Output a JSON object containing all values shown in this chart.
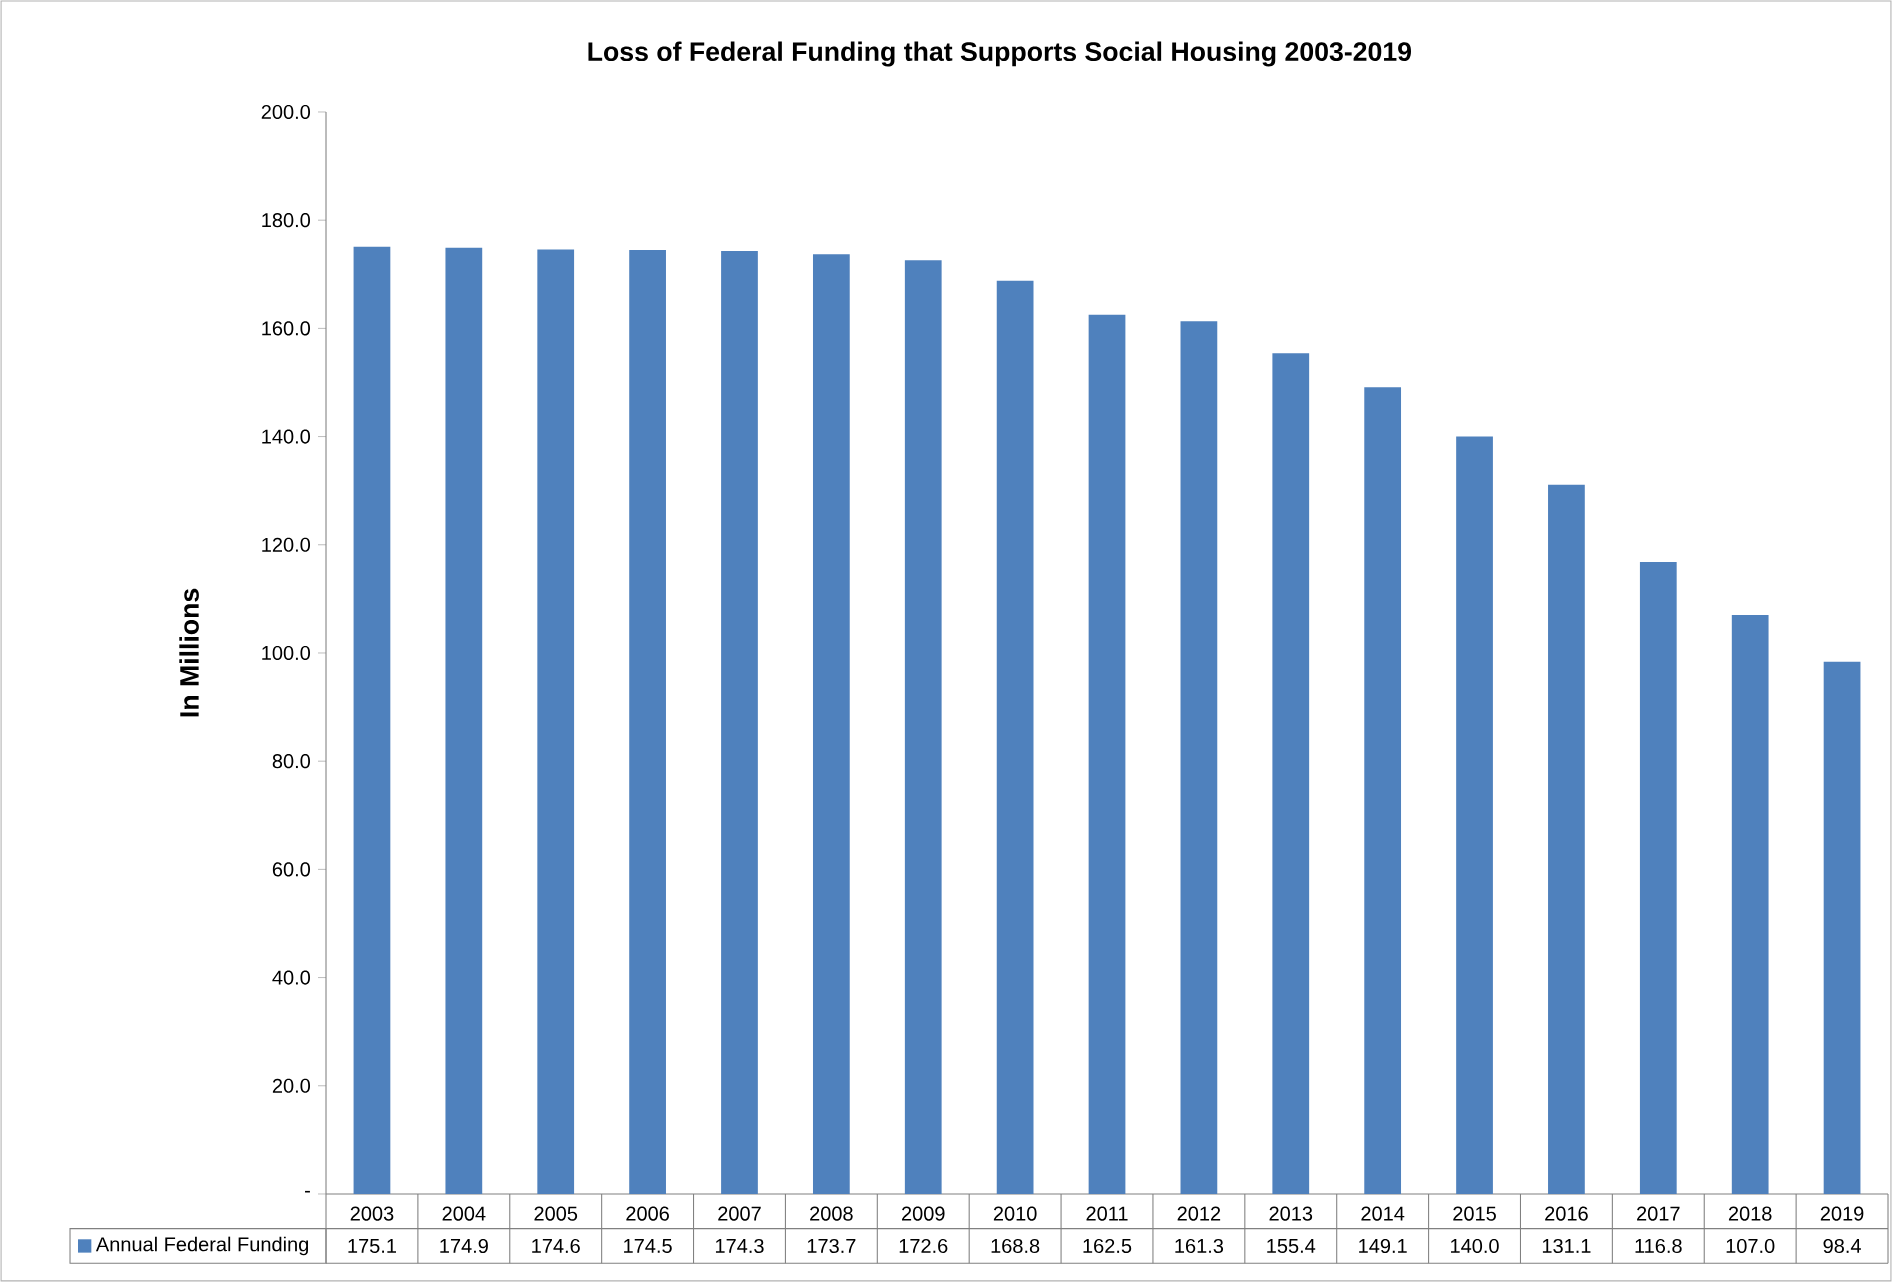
{
  "chart_data": {
    "type": "bar",
    "title": "Loss of Federal Funding that Supports Social Housing 2003-2019",
    "ylabel": "In Millions",
    "categories": [
      "2003",
      "2004",
      "2005",
      "2006",
      "2007",
      "2008",
      "2009",
      "2010",
      "2011",
      "2012",
      "2013",
      "2014",
      "2015",
      "2016",
      "2017",
      "2018",
      "2019"
    ],
    "series": [
      {
        "name": "Annual Federal Funding",
        "color": "#4f81bd",
        "values": [
          175.1,
          174.9,
          174.6,
          174.5,
          174.3,
          173.7,
          172.6,
          168.8,
          162.5,
          161.3,
          155.4,
          149.1,
          140.0,
          131.1,
          116.8,
          107.0,
          98.4
        ],
        "value_labels": [
          "175.1",
          "174.9",
          "174.6",
          "174.5",
          "174.3",
          "173.7",
          "172.6",
          "168.8",
          "162.5",
          "161.3",
          "155.4",
          "149.1",
          "140.0",
          "131.1",
          "116.8",
          "107.0",
          "98.4"
        ]
      }
    ],
    "ylim": [
      0,
      200
    ],
    "yticks": [
      {
        "value": 0,
        "label": "-"
      },
      {
        "value": 20,
        "label": "20.0"
      },
      {
        "value": 40,
        "label": "40.0"
      },
      {
        "value": 60,
        "label": "60.0"
      },
      {
        "value": 80,
        "label": "80.0"
      },
      {
        "value": 100,
        "label": "100.0"
      },
      {
        "value": 120,
        "label": "120.0"
      },
      {
        "value": 140,
        "label": "140.0"
      },
      {
        "value": 160,
        "label": "160.0"
      },
      {
        "value": 180,
        "label": "180.0"
      },
      {
        "value": 200,
        "label": "200.0"
      }
    ],
    "legend": "bottom"
  }
}
